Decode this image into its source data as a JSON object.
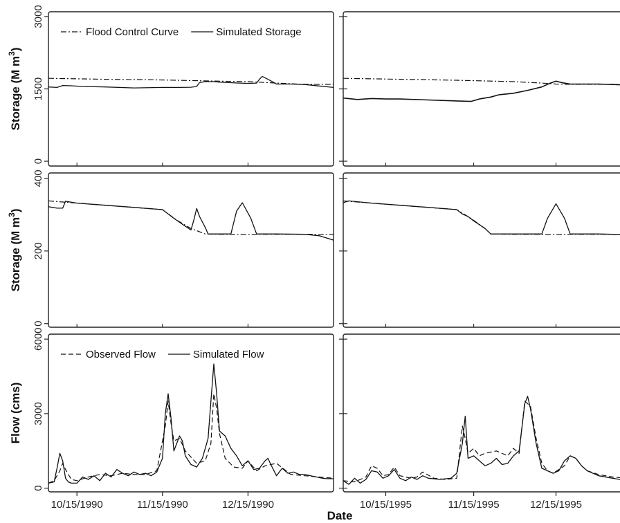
{
  "figure": {
    "xlabel": "Date"
  },
  "chart_data": [
    {
      "type": "line",
      "panel": "top-left",
      "ylabel": "Storage (M m",
      "ylabel_sup": "3",
      "ylabel_close": ")",
      "ylim": [
        -100,
        3100
      ],
      "yticks": [
        0,
        1500,
        3000
      ],
      "xlim": [
        0,
        100
      ],
      "legend": "top",
      "series": [
        {
          "name": "Flood Control Curve",
          "dash": "dashdot",
          "width": 1.2,
          "x": [
            0,
            20,
            40,
            60,
            70,
            80,
            90,
            100
          ],
          "y": [
            1720,
            1700,
            1685,
            1660,
            1650,
            1620,
            1595,
            1595
          ]
        },
        {
          "name": "Simulated Storage",
          "dash": "solid",
          "width": 1.3,
          "x": [
            0,
            3,
            5,
            8,
            12,
            20,
            30,
            40,
            46,
            50,
            52,
            53,
            55,
            58,
            60,
            63,
            67,
            70,
            73,
            74,
            75,
            77,
            80,
            85,
            90,
            95,
            100
          ],
          "y": [
            1540,
            1530,
            1570,
            1565,
            1550,
            1540,
            1520,
            1530,
            1530,
            1535,
            1550,
            1630,
            1650,
            1650,
            1640,
            1630,
            1620,
            1615,
            1620,
            1700,
            1760,
            1700,
            1600,
            1600,
            1590,
            1560,
            1530
          ]
        }
      ]
    },
    {
      "type": "line",
      "panel": "top-right",
      "ylim": [
        -100,
        3100
      ],
      "xlim": [
        0,
        100
      ],
      "series": [
        {
          "dash": "dashdot",
          "width": 1.2,
          "x": [
            0,
            20,
            40,
            60,
            70,
            75,
            80,
            100
          ],
          "y": [
            1720,
            1700,
            1680,
            1650,
            1620,
            1600,
            1595,
            1595
          ]
        },
        {
          "dash": "solid",
          "width": 1.6,
          "x": [
            0,
            5,
            10,
            15,
            20,
            30,
            40,
            45,
            48,
            52,
            55,
            60,
            65,
            70,
            73,
            75,
            77,
            80,
            85,
            90,
            100
          ],
          "y": [
            1310,
            1280,
            1300,
            1290,
            1290,
            1270,
            1250,
            1240,
            1290,
            1330,
            1380,
            1410,
            1470,
            1540,
            1620,
            1660,
            1630,
            1600,
            1600,
            1600,
            1580
          ]
        }
      ]
    },
    {
      "type": "line",
      "panel": "middle-left",
      "ylabel": "Storage (M m",
      "ylabel_sup": "3",
      "ylabel_close": ")",
      "ylim": [
        -10,
        415
      ],
      "yticks": [
        0,
        200,
        400
      ],
      "xlim": [
        0,
        100
      ],
      "series": [
        {
          "dash": "dashdot",
          "width": 1.2,
          "x": [
            0,
            10,
            20,
            30,
            40,
            45,
            50,
            55,
            60,
            70,
            80,
            90,
            100
          ],
          "y": [
            338,
            332,
            326,
            320,
            314,
            285,
            262,
            247,
            246,
            246,
            246,
            246,
            246
          ]
        },
        {
          "dash": "solid",
          "width": 1.3,
          "x": [
            0,
            3,
            5,
            6,
            10,
            20,
            30,
            40,
            44,
            48,
            50,
            51,
            52,
            53,
            55,
            56,
            60,
            64,
            66,
            68,
            71,
            73,
            80,
            90,
            95,
            100
          ],
          "y": [
            322,
            318,
            318,
            337,
            332,
            326,
            320,
            314,
            290,
            268,
            258,
            285,
            317,
            295,
            265,
            247,
            247,
            247,
            310,
            333,
            290,
            247,
            247,
            246,
            242,
            230
          ]
        }
      ]
    },
    {
      "type": "line",
      "panel": "middle-right",
      "ylim": [
        -10,
        415
      ],
      "xlim": [
        0,
        100
      ],
      "series": [
        {
          "dash": "dashdot",
          "width": 1.2,
          "x": [
            0,
            10,
            20,
            30,
            40,
            45,
            50,
            52,
            60,
            70,
            80,
            90,
            100
          ],
          "y": [
            338,
            332,
            326,
            320,
            314,
            290,
            262,
            247,
            246,
            246,
            246,
            246,
            246
          ]
        },
        {
          "dash": "solid",
          "width": 1.3,
          "x": [
            0,
            2,
            10,
            20,
            30,
            40,
            42,
            44,
            46,
            50,
            52,
            60,
            70,
            72,
            75,
            78,
            80,
            90,
            100
          ],
          "y": [
            333,
            338,
            332,
            326,
            320,
            314,
            302,
            295,
            283,
            262,
            247,
            247,
            247,
            290,
            330,
            290,
            247,
            247,
            245
          ]
        }
      ]
    },
    {
      "type": "line",
      "panel": "bottom-left",
      "ylabel": "Flow (cms)",
      "ylim": [
        -150,
        6200
      ],
      "yticks": [
        0,
        3000,
        6000
      ],
      "xlim": [
        0,
        100
      ],
      "xticks": [
        10,
        40,
        70
      ],
      "xticklabels": [
        "10/15/1990",
        "11/15/1990",
        "12/15/1990"
      ],
      "legend": "top",
      "series": [
        {
          "name": "Observed Flow",
          "dash": "dashed",
          "width": 1.2,
          "x": [
            0,
            2,
            4,
            5,
            6,
            8,
            10,
            14,
            18,
            22,
            26,
            30,
            34,
            38,
            41,
            42,
            43,
            44,
            46,
            48,
            52,
            55,
            57,
            58,
            59,
            60,
            62,
            65,
            68,
            70,
            73,
            76,
            80,
            85,
            90,
            95,
            100
          ],
          "y": [
            200,
            300,
            700,
            1000,
            750,
            350,
            300,
            450,
            550,
            500,
            600,
            550,
            550,
            700,
            2500,
            3500,
            2600,
            1900,
            2000,
            1500,
            1000,
            1100,
            1800,
            3800,
            3200,
            2200,
            1200,
            850,
            800,
            1100,
            700,
            900,
            1000,
            550,
            500,
            450,
            400
          ]
        },
        {
          "name": "Simulated Flow",
          "dash": "solid",
          "width": 1.3,
          "x": [
            0,
            2,
            3,
            4,
            5,
            6,
            7,
            8,
            10,
            12,
            14,
            16,
            18,
            20,
            22,
            24,
            26,
            28,
            30,
            32,
            34,
            36,
            38,
            40,
            41,
            42,
            43,
            44,
            45,
            46,
            47,
            48,
            50,
            52,
            54,
            56,
            57,
            58,
            59,
            60,
            62,
            64,
            66,
            68,
            70,
            72,
            74,
            76,
            77,
            78,
            80,
            82,
            84,
            86,
            88,
            90,
            92,
            94,
            96,
            98,
            100
          ],
          "y": [
            200,
            250,
            800,
            1400,
            1100,
            400,
            250,
            200,
            200,
            450,
            350,
            500,
            300,
            600,
            450,
            750,
            600,
            500,
            650,
            550,
            600,
            500,
            650,
            1200,
            3000,
            3800,
            2800,
            1500,
            1800,
            2100,
            1900,
            1300,
            950,
            850,
            1200,
            2000,
            3500,
            5000,
            3800,
            2300,
            2100,
            1600,
            1300,
            900,
            1100,
            750,
            800,
            1100,
            1200,
            950,
            500,
            800,
            600,
            650,
            550,
            550,
            500,
            450,
            400,
            380,
            380
          ]
        }
      ]
    },
    {
      "type": "line",
      "panel": "bottom-right",
      "ylim": [
        -150,
        6200
      ],
      "xlim": [
        0,
        100
      ],
      "xticks": [
        15,
        46,
        75
      ],
      "xticklabels": [
        "10/15/1995",
        "11/15/1995",
        "12/15/1995"
      ],
      "series": [
        {
          "dash": "dashed",
          "width": 1.2,
          "x": [
            0,
            4,
            8,
            10,
            12,
            14,
            16,
            18,
            20,
            24,
            26,
            28,
            32,
            36,
            40,
            42,
            43,
            44,
            46,
            48,
            50,
            54,
            58,
            60,
            62,
            64,
            66,
            68,
            70,
            72,
            74,
            78,
            80,
            82,
            84,
            86,
            90,
            95,
            100
          ],
          "y": [
            300,
            250,
            450,
            900,
            800,
            500,
            550,
            850,
            500,
            400,
            450,
            650,
            400,
            350,
            400,
            2500,
            2000,
            1400,
            1600,
            1300,
            1400,
            1500,
            1300,
            1600,
            1400,
            3500,
            3300,
            2000,
            1000,
            700,
            600,
            900,
            1300,
            1200,
            900,
            700,
            550,
            450,
            400
          ]
        },
        {
          "dash": "solid",
          "width": 1.3,
          "x": [
            0,
            2,
            4,
            6,
            8,
            10,
            12,
            14,
            16,
            18,
            20,
            22,
            24,
            26,
            28,
            30,
            34,
            38,
            40,
            42,
            43,
            44,
            46,
            48,
            50,
            52,
            54,
            56,
            58,
            60,
            62,
            64,
            65,
            66,
            68,
            70,
            72,
            74,
            76,
            78,
            80,
            82,
            84,
            86,
            90,
            95,
            100
          ],
          "y": [
            300,
            150,
            400,
            200,
            350,
            700,
            650,
            400,
            500,
            750,
            400,
            300,
            450,
            350,
            500,
            400,
            350,
            400,
            600,
            1800,
            2900,
            1200,
            1300,
            1100,
            900,
            1000,
            1200,
            950,
            1000,
            1300,
            1500,
            3400,
            3700,
            3200,
            1800,
            800,
            700,
            600,
            700,
            1100,
            1300,
            1200,
            900,
            700,
            500,
            400,
            300
          ]
        }
      ]
    }
  ]
}
